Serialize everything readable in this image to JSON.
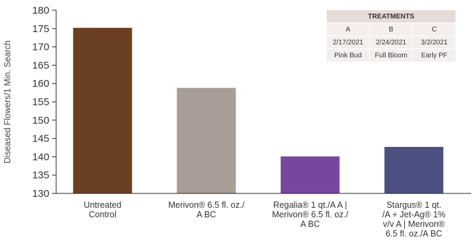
{
  "chart_data": {
    "type": "bar",
    "title": "",
    "xlabel": "",
    "ylabel": "Diseased Flowers/1 Min. Search",
    "ylim": [
      130,
      180
    ],
    "yticks": [
      130,
      135,
      140,
      145,
      150,
      155,
      160,
      165,
      170,
      175,
      180
    ],
    "categories": [
      [
        "Untreated",
        "Control"
      ],
      [
        "Merivon® 6.5 fl. oz./",
        "A BC"
      ],
      [
        "Regalia® 1 qt./A A |",
        "Merivon® 6.5 fl. oz./",
        "A BC"
      ],
      [
        "Stargus® 1 qt.",
        "/A + Jet-Ag® 1%",
        "v/v A | Merivon®",
        "6.5 fl. oz./A BC"
      ]
    ],
    "values": [
      175.2,
      158.8,
      140.1,
      142.7
    ],
    "colors": [
      "#6b3f22",
      "#a89d97",
      "#7747a0",
      "#4b5081"
    ],
    "grid": false,
    "legend": "none"
  },
  "treatments_table": {
    "header": "TREATMENTS",
    "rows": [
      [
        "A",
        "B",
        "C"
      ],
      [
        "2/17/2021",
        "2/24/2021",
        "3/2/2021"
      ],
      [
        "Pink Bud",
        "Full Bloom",
        "Early PF"
      ]
    ]
  }
}
